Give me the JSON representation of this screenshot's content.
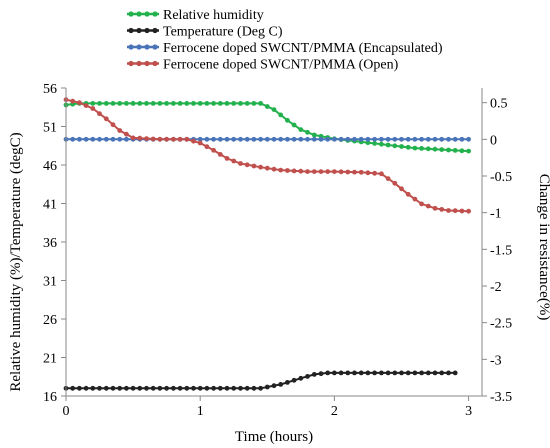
{
  "chart_data": {
    "type": "line",
    "title": "",
    "xlabel": "Time (hours)",
    "ylabel_left": "Relative humidity (%)/Temperature (degC)",
    "ylabel_right": "Change in resistance(%)",
    "xlim": [
      0,
      3.1
    ],
    "ylim_left": [
      16,
      56
    ],
    "ylim_right": [
      -3.5,
      0.7
    ],
    "x_ticks": [
      "0",
      "1",
      "2",
      "3"
    ],
    "y_left_ticks": [
      "16",
      "21",
      "26",
      "31",
      "36",
      "41",
      "46",
      "51",
      "56"
    ],
    "y_right_ticks": [
      "0.5",
      "0",
      "-0.5",
      "-1",
      "-1.5",
      "-2",
      "-2.5",
      "-3",
      "-3.5"
    ],
    "grid": false,
    "legend_position": "top",
    "series": [
      {
        "name": "Relative humidity",
        "axis": "left",
        "color": "#22b14c",
        "points": [
          [
            0,
            53.8
          ],
          [
            0.1,
            54.0
          ],
          [
            0.5,
            54.0
          ],
          [
            1.0,
            54.0
          ],
          [
            1.45,
            54.0
          ],
          [
            1.55,
            53.2
          ],
          [
            1.65,
            51.8
          ],
          [
            1.75,
            50.6
          ],
          [
            1.85,
            49.9
          ],
          [
            2.0,
            49.4
          ],
          [
            2.2,
            49.0
          ],
          [
            2.4,
            48.6
          ],
          [
            2.6,
            48.2
          ],
          [
            2.8,
            48.0
          ],
          [
            3.0,
            47.8
          ]
        ]
      },
      {
        "name": "Temperature (Deg C)",
        "axis": "left",
        "color": "#222222",
        "points": [
          [
            0,
            17.0
          ],
          [
            0.5,
            17.0
          ],
          [
            1.0,
            17.0
          ],
          [
            1.45,
            17.0
          ],
          [
            1.6,
            17.5
          ],
          [
            1.75,
            18.3
          ],
          [
            1.85,
            18.8
          ],
          [
            1.95,
            19.0
          ],
          [
            2.2,
            19.0
          ],
          [
            2.5,
            19.0
          ],
          [
            2.9,
            19.0
          ]
        ]
      },
      {
        "name": "Ferrocene doped SWCNT/PMMA (Encapsulated)",
        "axis": "right",
        "color": "#4a74b8",
        "points": [
          [
            0,
            0.0
          ],
          [
            0.5,
            0.0
          ],
          [
            1.0,
            0.0
          ],
          [
            1.5,
            0.0
          ],
          [
            2.0,
            0.0
          ],
          [
            2.5,
            0.0
          ],
          [
            3.0,
            0.0
          ]
        ]
      },
      {
        "name": "Ferrocene doped SWCNT/PMMA (Open)",
        "axis": "right",
        "color": "#c0504d",
        "points": [
          [
            0,
            0.54
          ],
          [
            0.1,
            0.5
          ],
          [
            0.2,
            0.42
          ],
          [
            0.3,
            0.28
          ],
          [
            0.4,
            0.12
          ],
          [
            0.5,
            0.02
          ],
          [
            0.7,
            0.0
          ],
          [
            0.9,
            0.0
          ],
          [
            1.0,
            -0.05
          ],
          [
            1.1,
            -0.15
          ],
          [
            1.2,
            -0.26
          ],
          [
            1.3,
            -0.33
          ],
          [
            1.45,
            -0.38
          ],
          [
            1.6,
            -0.42
          ],
          [
            1.8,
            -0.44
          ],
          [
            2.0,
            -0.44
          ],
          [
            2.2,
            -0.45
          ],
          [
            2.35,
            -0.47
          ],
          [
            2.45,
            -0.6
          ],
          [
            2.55,
            -0.75
          ],
          [
            2.65,
            -0.88
          ],
          [
            2.75,
            -0.94
          ],
          [
            2.85,
            -0.97
          ],
          [
            3.0,
            -0.98
          ]
        ]
      }
    ]
  }
}
